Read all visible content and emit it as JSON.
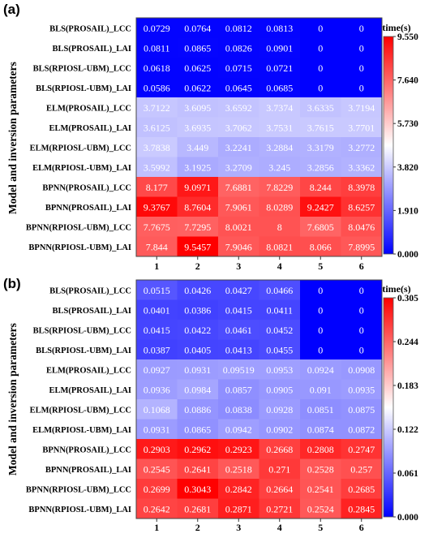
{
  "chart_data": [
    {
      "type": "heatmap",
      "panel_label": "(a)",
      "ylabel": "Model and inversion parameters",
      "colorbar_title": "time(s)",
      "colorbar_ticks": [
        "9.550",
        "7.640",
        "5.730",
        "3.820",
        "1.910",
        "0.000"
      ],
      "colorbar_range": [
        0,
        9.55
      ],
      "colors": {
        "low": "#0000ff",
        "mid": "#ffffff",
        "high": "#ff0000"
      },
      "columns": [
        "1",
        "2",
        "3",
        "4",
        "5",
        "6"
      ],
      "rows": [
        "BLS(PROSAIL)_LCC",
        "BLS(PROSAIL)_LAI",
        "BLS(RPIOSL-UBM)_LCC",
        "BLS(RPIOSL-UBM)_LAI",
        "ELM(PROSAIL)_LCC",
        "ELM(PROSAIL)_LAI",
        "ELM(RPIOSL-UBM)_LCC",
        "ELM(RPIOSL-UBM)_LAI",
        "BPNN(PROSAIL)_LCC",
        "BPNN(PROSAIL)_LAI",
        "BPNN(RPIOSL-UBM)_LCC",
        "BPNN(RPIOSL-UBM)_LAI"
      ],
      "cells": [
        [
          "0.0729",
          "0.0764",
          "0.0812",
          "0.0813",
          "0",
          "0"
        ],
        [
          "0.0811",
          "0.0865",
          "0.0826",
          "0.0901",
          "0",
          "0"
        ],
        [
          "0.0618",
          "0.0625",
          "0.0715",
          "0.0721",
          "0",
          "0"
        ],
        [
          "0.0586",
          "0.0622",
          "0.0645",
          "0.0685",
          "0",
          "0"
        ],
        [
          "3.7122",
          "3.6095",
          "3.6592",
          "3.7374",
          "3.6335",
          "3.7194"
        ],
        [
          "3.6125",
          "3.6935",
          "3.7062",
          "3.7531",
          "3.7615",
          "3.7701"
        ],
        [
          "3.7838",
          "3.449",
          "3.2241",
          "3.2884",
          "3.3179",
          "3.2772"
        ],
        [
          "3.5992",
          "3.1925",
          "3.2709",
          "3.245",
          "3.2856",
          "3.3362"
        ],
        [
          "8.177",
          "9.0971",
          "7.6881",
          "7.8229",
          "8.244",
          "8.3978"
        ],
        [
          "9.3767",
          "8.7604",
          "7.9061",
          "8.0289",
          "9.2427",
          "8.6257"
        ],
        [
          "7.7675",
          "7.7295",
          "8.0021",
          "8",
          "7.6805",
          "8.0476"
        ],
        [
          "7.844",
          "9.5457",
          "7.9046",
          "8.0821",
          "8.066",
          "7.8995"
        ]
      ]
    },
    {
      "type": "heatmap",
      "panel_label": "(b)",
      "ylabel": "Model and inversion parameters",
      "colorbar_title": "time(s)",
      "colorbar_ticks": [
        "0.305",
        "0.244",
        "0.183",
        "0.122",
        "0.061",
        "0.000"
      ],
      "colorbar_range": [
        0,
        0.305
      ],
      "colors": {
        "low": "#0000ff",
        "mid": "#ffffff",
        "high": "#ff0000"
      },
      "columns": [
        "1",
        "2",
        "3",
        "4",
        "5",
        "6"
      ],
      "rows": [
        "BLS(PROSAIL)_LCC",
        "BLS(PROSAIL)_LAI",
        "BLS(RPIOSL-UBM)_LCC",
        "BLS(RPIOSL-UBM)_LAI",
        "ELM(PROSAIL)_LCC",
        "ELM(PROSAIL)_LAI",
        "ELM(RPIOSL-UBM)_LCC",
        "ELM(RPIOSL-UBM)_LAI",
        "BPNN(PROSAIL)_LCC",
        "BPNN(PROSAIL)_LAI",
        "BPNN(RPIOSL-UBM)_LCC",
        "BPNN(RPIOSL-UBM)_LAI"
      ],
      "cells": [
        [
          "0.0515",
          "0.0426",
          "0.0427",
          "0.0466",
          "0",
          "0"
        ],
        [
          "0.0401",
          "0.0386",
          "0.0415",
          "0.0411",
          "0",
          "0"
        ],
        [
          "0.0415",
          "0.0422",
          "0.0461",
          "0.0452",
          "0",
          "0"
        ],
        [
          "0.0387",
          "0.0405",
          "0.0413",
          "0.0455",
          "0",
          "0"
        ],
        [
          "0.0927",
          "0.0931",
          "0.09519",
          "0.0953",
          "0.0924",
          "0.0908"
        ],
        [
          "0.0936",
          "0.0984",
          "0.0857",
          "0.0905",
          "0.091",
          "0.0935"
        ],
        [
          "0.1068",
          "0.0886",
          "0.0838",
          "0.0928",
          "0.0851",
          "0.0875"
        ],
        [
          "0.0931",
          "0.0865",
          "0.0942",
          "0.0902",
          "0.0874",
          "0.0872"
        ],
        [
          "0.2903",
          "0.2962",
          "0.2923",
          "0.2668",
          "0.2808",
          "0.2747"
        ],
        [
          "0.2545",
          "0.2641",
          "0.2518",
          "0.271",
          "0.2528",
          "0.257"
        ],
        [
          "0.2699",
          "0.3043",
          "0.2842",
          "0.2664",
          "0.2541",
          "0.2685"
        ],
        [
          "0.2642",
          "0.2681",
          "0.2871",
          "0.2721",
          "0.2524",
          "0.2845"
        ]
      ]
    }
  ]
}
